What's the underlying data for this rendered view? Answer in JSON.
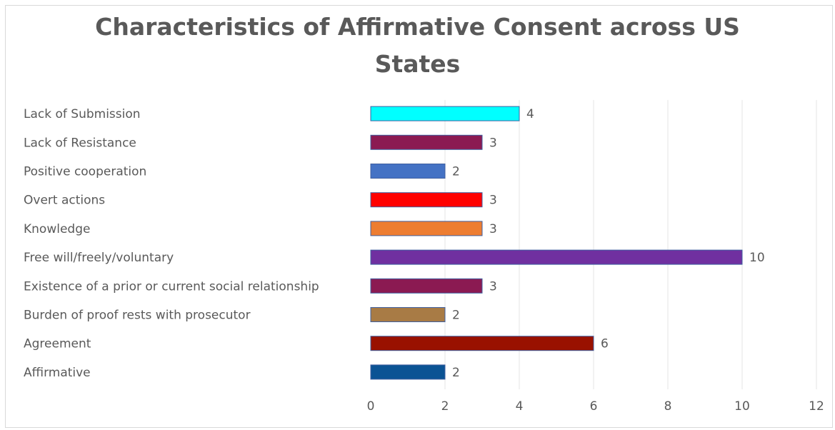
{
  "chart_data": {
    "type": "bar",
    "orientation": "horizontal",
    "title_lines": [
      "Characteristics of Affirmative Consent across US",
      "States"
    ],
    "categories": [
      "Lack of Submission",
      "Lack of Resistance",
      "Positive cooperation",
      "Overt actions",
      "Knowledge",
      "Free will/freely/voluntary",
      "Existence of a prior or current social relationship",
      "Burden of proof rests with prosecutor",
      "Agreement",
      "Affirmative"
    ],
    "values": [
      4,
      3,
      2,
      3,
      3,
      10,
      3,
      2,
      6,
      2
    ],
    "bar_colors": [
      "#00FFFF",
      "#8B1A52",
      "#4472C4",
      "#FF0000",
      "#ED7D31",
      "#7030A0",
      "#8B1A52",
      "#A87B45",
      "#991100",
      "#0B5394"
    ],
    "xlim": [
      0,
      12
    ],
    "xticks": [
      0,
      2,
      4,
      6,
      8,
      10,
      12
    ],
    "data_labels": true,
    "grid": "vertical"
  }
}
